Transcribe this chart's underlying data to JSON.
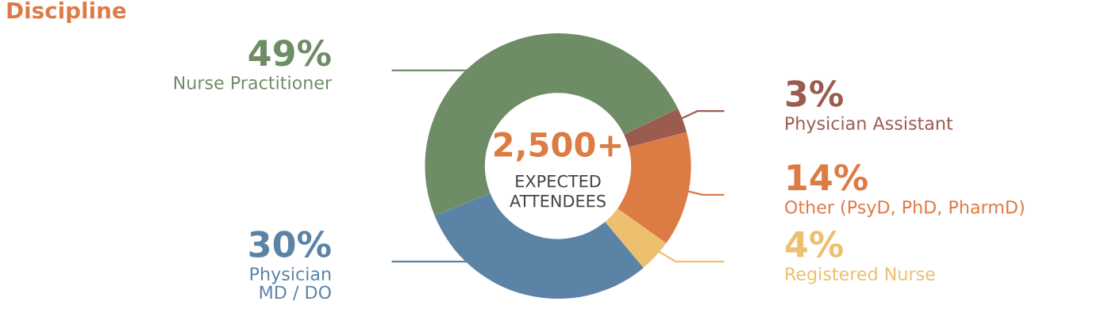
{
  "chart_data": {
    "type": "donut",
    "title": "Discipline",
    "categories": [
      "Nurse Practitioner",
      "Physician Assistant",
      "Other (PsyD, PhD, PharmD)",
      "Registered Nurse",
      "Physician\nMD / DO"
    ],
    "values": [
      49,
      3,
      14,
      4,
      30
    ],
    "value_labels": [
      "49%",
      "3%",
      "14%",
      "4%",
      "30%"
    ],
    "colors": [
      "#6e8c66",
      "#9c5b4f",
      "#dd7b45",
      "#ecc06e",
      "#5b83a6"
    ],
    "annotations": [
      "2,500+",
      "EXPECTED\nATTENDEES"
    ],
    "legend": false
  }
}
